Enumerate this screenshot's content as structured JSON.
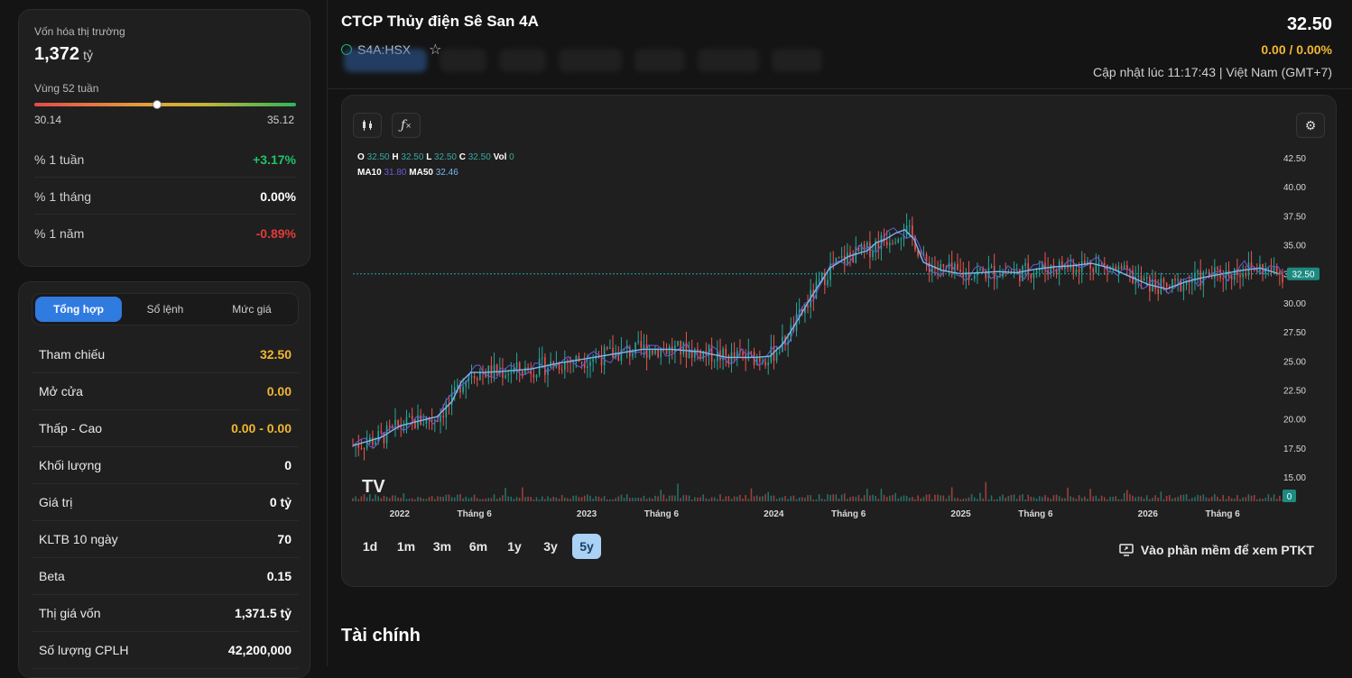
{
  "sidebar": {
    "market_cap_label": "Vốn hóa thị trường",
    "market_cap_value": "1,372",
    "market_cap_unit": "tỷ",
    "range_label": "Vùng 52 tuần",
    "range_low": "30.14",
    "range_high": "35.12",
    "range_position": 0.47,
    "performance": [
      {
        "label": "% 1 tuần",
        "value": "+3.17%",
        "trend": "up"
      },
      {
        "label": "% 1 tháng",
        "value": "0.00%",
        "trend": "flat"
      },
      {
        "label": "% 1 năm",
        "value": "-0.89%",
        "trend": "down"
      }
    ],
    "tabs": [
      "Tổng hợp",
      "Sổ lệnh",
      "Mức giá"
    ],
    "active_tab": "Tổng hợp",
    "stats": [
      {
        "label": "Tham chiếu",
        "value": "32.50",
        "color": "yellow"
      },
      {
        "label": "Mở cửa",
        "value": "0.00",
        "color": "yellow"
      },
      {
        "label": "Thấp - Cao",
        "value": "0.00  -  0.00",
        "color": "yellow"
      },
      {
        "label": "Khối lượng",
        "value": "0",
        "color": "white"
      },
      {
        "label": "Giá trị",
        "value": "0 tỷ",
        "color": "white"
      },
      {
        "label": "KLTB 10 ngày",
        "value": "70",
        "color": "white"
      },
      {
        "label": "Beta",
        "value": "0.15",
        "color": "white"
      },
      {
        "label": "Thị giá vốn",
        "value": "1,371.5 tỷ",
        "color": "white"
      },
      {
        "label": "Số lượng CPLH",
        "value": "42,200,000",
        "color": "white"
      }
    ]
  },
  "header": {
    "company_name": "CTCP Thủy điện Sê San 4A",
    "ticker": "S4A:HSX",
    "price": "32.50",
    "change": "0.00 / 0.00%",
    "updated": "Cập nhật lúc 11:17:43 | Việt Nam (GMT+7)"
  },
  "chart": {
    "ohlc": {
      "o_label": "O",
      "o": "32.50",
      "h_label": "H",
      "h": "32.50",
      "l_label": "L",
      "l": "32.50",
      "c_label": "C",
      "c": "32.50",
      "vol_label": "Vol",
      "vol": "0"
    },
    "ma": {
      "ma10_label": "MA10",
      "ma10": "31.80",
      "ma50_label": "MA50",
      "ma50": "32.46"
    },
    "periods": [
      "1d",
      "1m",
      "3m",
      "6m",
      "1y",
      "3y",
      "5y"
    ],
    "active_period": "5y",
    "ptkt_label": "Vào phần mềm để xem PTKT",
    "logo_text": "TV"
  },
  "chart_data": {
    "type": "line",
    "y_ticks": [
      "42.50",
      "40.00",
      "37.50",
      "35.00",
      "32.50",
      "30.00",
      "27.50",
      "25.00",
      "22.50",
      "20.00",
      "17.50",
      "15.00"
    ],
    "x_ticks": [
      "2022",
      "Tháng 6",
      "2023",
      "Tháng 6",
      "2024",
      "Tháng 6",
      "2025",
      "Tháng 6",
      "2026",
      "Tháng 6"
    ],
    "last_price_label": "32.50",
    "last_volume_label": "0",
    "ylim": [
      15,
      42.5
    ],
    "x_range": [
      2021.75,
      2026.72
    ],
    "series": [
      {
        "name": "MA50",
        "x": [
          2021.75,
          2021.9,
          2022.0,
          2022.1,
          2022.2,
          2022.28,
          2022.33,
          2022.38,
          2022.45,
          2022.55,
          2022.7,
          2022.85,
          2023.0,
          2023.15,
          2023.3,
          2023.45,
          2023.6,
          2023.75,
          2023.9,
          2023.98,
          2024.05,
          2024.12,
          2024.2,
          2024.3,
          2024.4,
          2024.5,
          2024.55,
          2024.6,
          2024.65,
          2024.7,
          2024.75,
          2024.8,
          2024.9,
          2025.0,
          2025.1,
          2025.2,
          2025.3,
          2025.4,
          2025.5,
          2025.6,
          2025.7,
          2025.8,
          2025.9,
          2026.0,
          2026.1,
          2026.2,
          2026.3,
          2026.4,
          2026.5,
          2026.6,
          2026.7
        ],
        "y": [
          17.7,
          18.4,
          19.4,
          19.8,
          20.2,
          21.5,
          23.2,
          24.0,
          24.0,
          24.1,
          24.3,
          24.8,
          25.2,
          25.6,
          26.0,
          26.0,
          25.8,
          25.3,
          25.3,
          25.4,
          26.5,
          28.3,
          30.5,
          33.0,
          34.0,
          34.5,
          35.2,
          35.5,
          36.0,
          36.3,
          35.5,
          33.5,
          32.8,
          32.5,
          32.6,
          32.7,
          32.6,
          32.9,
          33.1,
          33.2,
          33.4,
          33.0,
          32.3,
          31.6,
          31.2,
          31.8,
          32.2,
          32.5,
          32.8,
          33.0,
          32.5
        ]
      }
    ]
  }
}
